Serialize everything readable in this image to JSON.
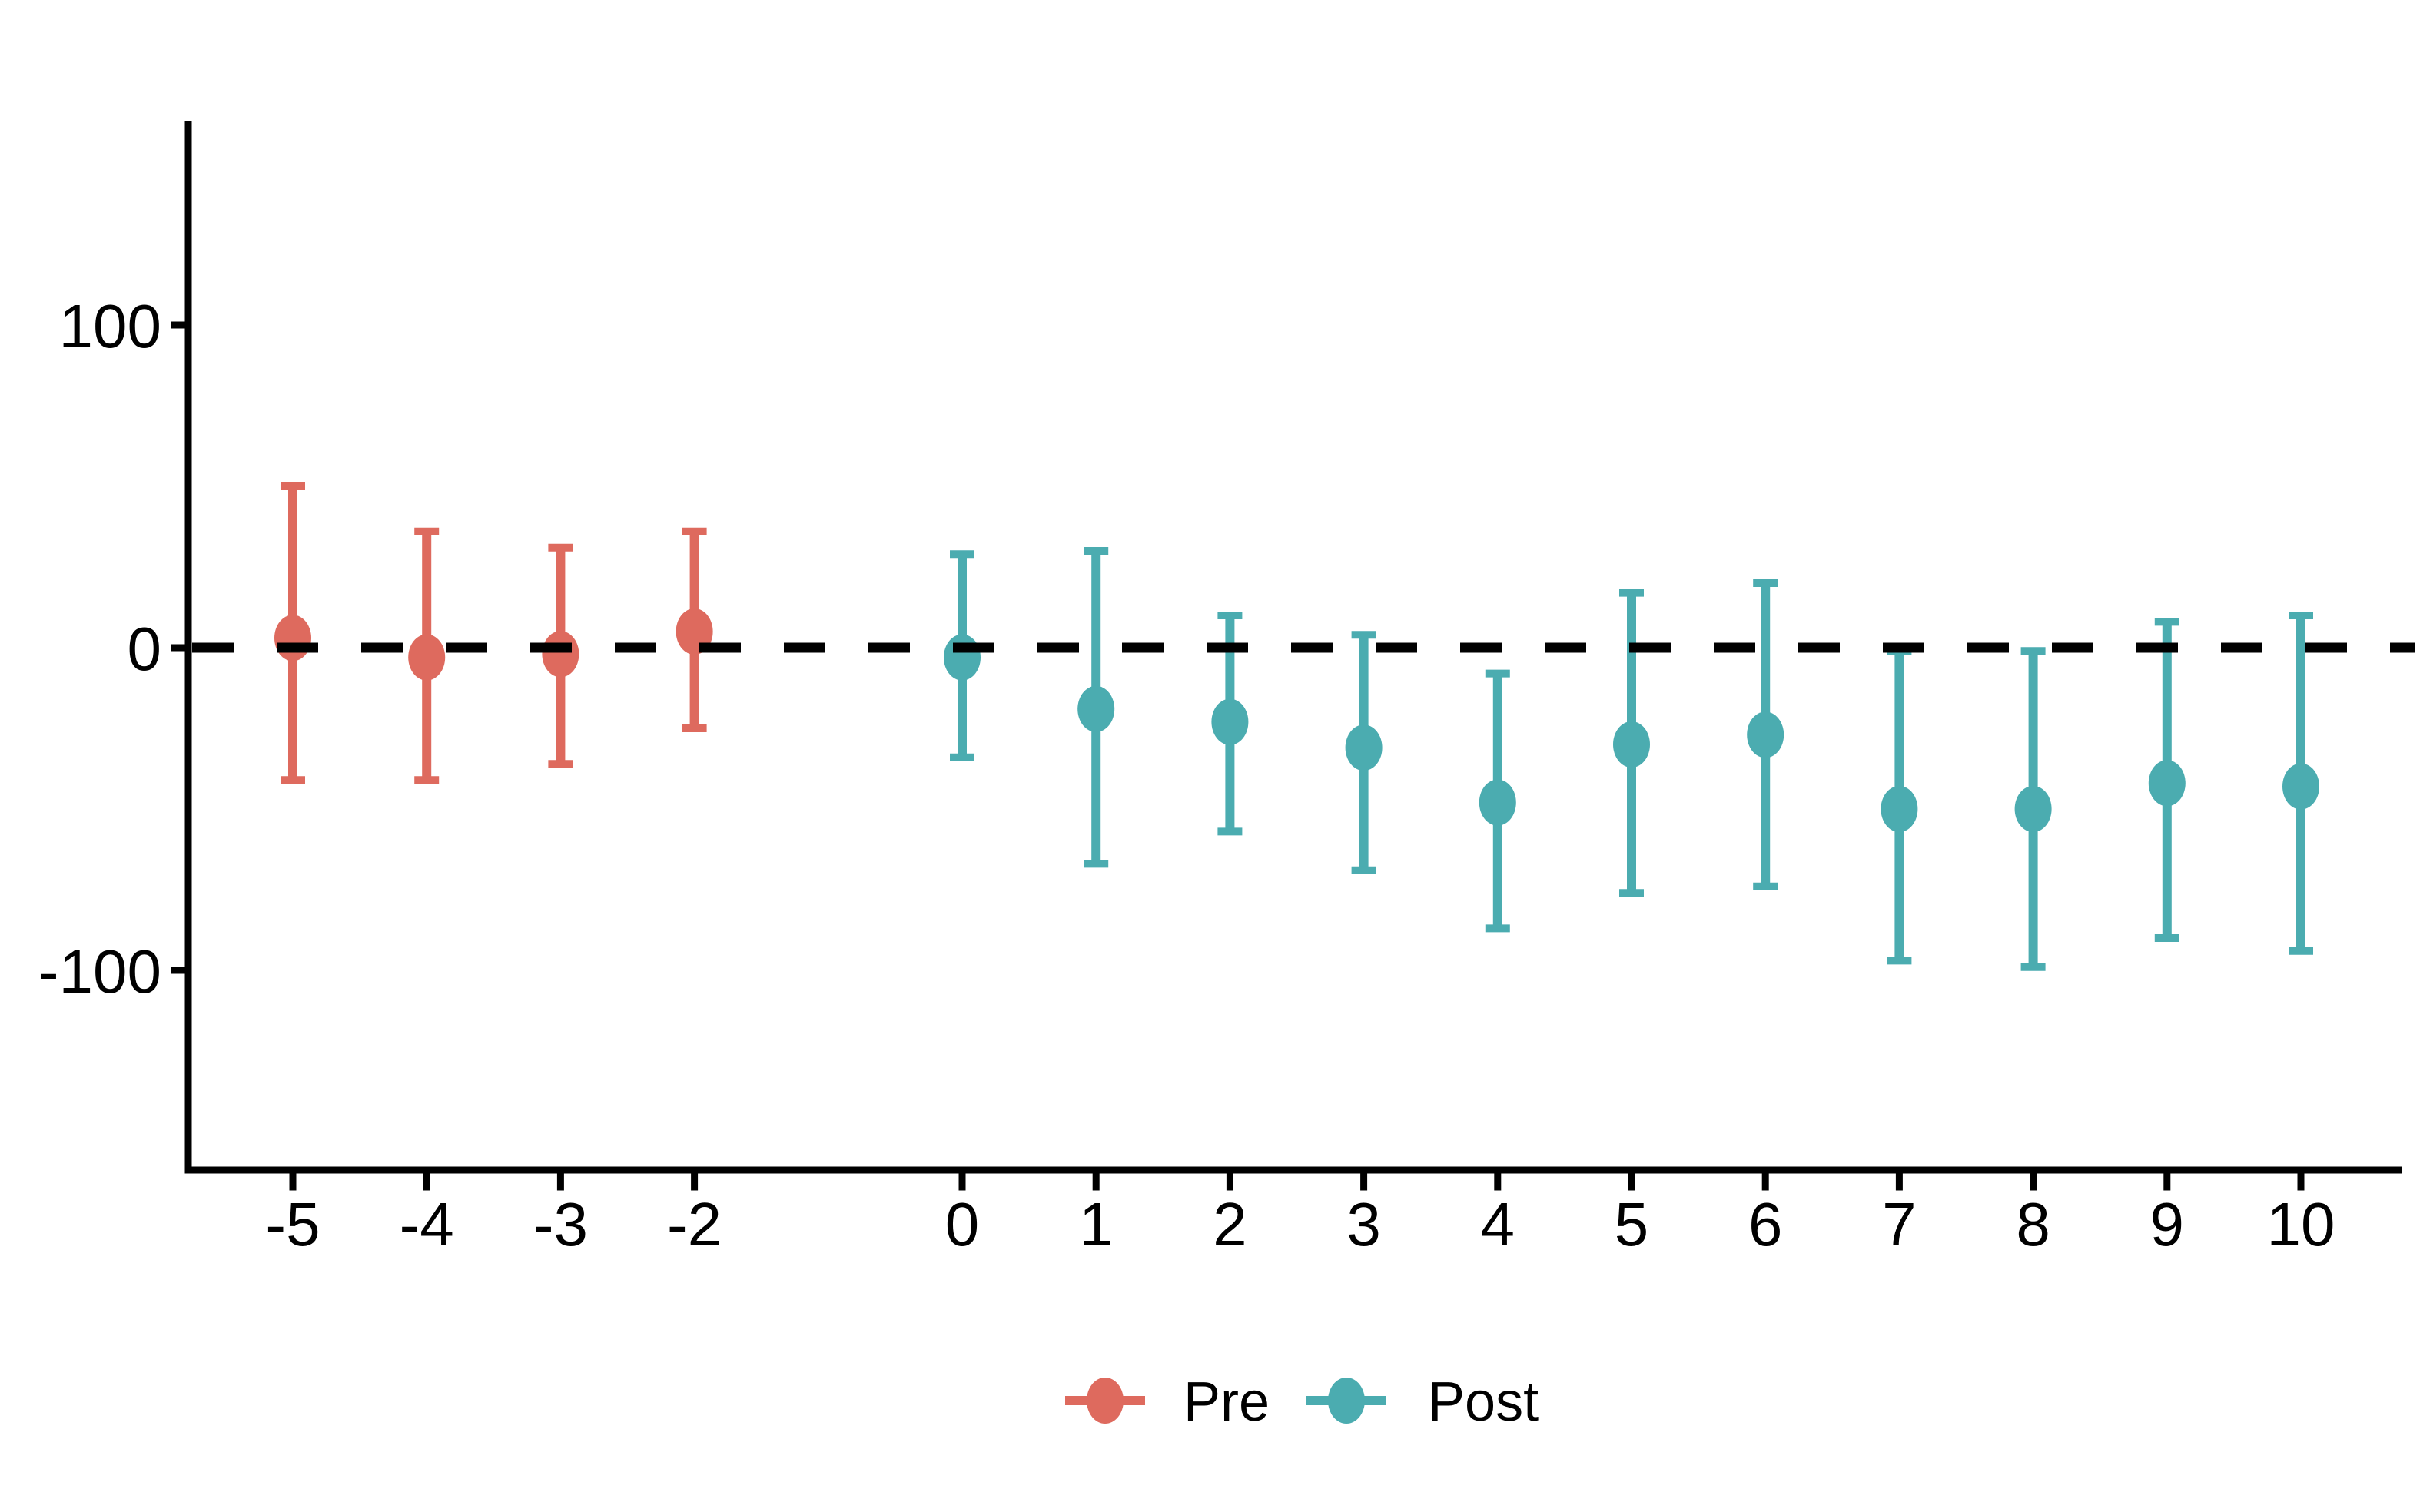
{
  "figure": {
    "background": "#FFFFFF",
    "title": ""
  },
  "colors": {
    "pre": "#DE6A5E",
    "post": "#4BACB0",
    "axis": "#000000",
    "zero_line": "#000000",
    "background": "#FFFFFF"
  },
  "chart_data": {
    "type": "scatter",
    "subtype": "errorbar-pointrange-event-study",
    "title": "",
    "xlabel": "",
    "ylabel": "",
    "grid": false,
    "legend_position": "bottom-center",
    "xlim": [
      -5.8,
      10.8
    ],
    "ylim": [
      -163,
      163
    ],
    "zero_reference_line": {
      "y": 0,
      "style": "dashed",
      "color": "#000000"
    },
    "x_ticks": [
      {
        "value": -5,
        "label": "-5"
      },
      {
        "value": -4,
        "label": "-4"
      },
      {
        "value": -3,
        "label": "-3"
      },
      {
        "value": -2,
        "label": "-2"
      },
      {
        "value": 0,
        "label": "0"
      },
      {
        "value": 1,
        "label": "1"
      },
      {
        "value": 2,
        "label": "2"
      },
      {
        "value": 3,
        "label": "3"
      },
      {
        "value": 4,
        "label": "4"
      },
      {
        "value": 5,
        "label": "5"
      },
      {
        "value": 6,
        "label": "6"
      },
      {
        "value": 7,
        "label": "7"
      },
      {
        "value": 8,
        "label": "8"
      },
      {
        "value": 9,
        "label": "9"
      },
      {
        "value": 10,
        "label": "10"
      }
    ],
    "y_ticks": [
      {
        "value": 100,
        "label": "100"
      },
      {
        "value": 0,
        "label": "0"
      },
      {
        "value": -100,
        "label": "-100"
      }
    ],
    "series": [
      {
        "name": "Pre",
        "color": "#DE6A5E",
        "points": [
          {
            "x": -5,
            "y": 3,
            "lo": -41,
            "hi": 50
          },
          {
            "x": -4,
            "y": -3,
            "lo": -41,
            "hi": 36
          },
          {
            "x": -3,
            "y": -2,
            "lo": -36,
            "hi": 31
          },
          {
            "x": -2,
            "y": 5,
            "lo": -25,
            "hi": 36
          }
        ]
      },
      {
        "name": "Post",
        "color": "#4BACB0",
        "points": [
          {
            "x": 0,
            "y": -3,
            "lo": -34,
            "hi": 29
          },
          {
            "x": 1,
            "y": -19,
            "lo": -67,
            "hi": 30
          },
          {
            "x": 2,
            "y": -23,
            "lo": -57,
            "hi": 10
          },
          {
            "x": 3,
            "y": -31,
            "lo": -69,
            "hi": 4
          },
          {
            "x": 4,
            "y": -48,
            "lo": -87,
            "hi": -8
          },
          {
            "x": 5,
            "y": -30,
            "lo": -76,
            "hi": 17
          },
          {
            "x": 6,
            "y": -27,
            "lo": -74,
            "hi": 20
          },
          {
            "x": 7,
            "y": -50,
            "lo": -97,
            "hi": -1
          },
          {
            "x": 8,
            "y": -50,
            "lo": -99,
            "hi": -1
          },
          {
            "x": 9,
            "y": -42,
            "lo": -90,
            "hi": 8
          },
          {
            "x": 10,
            "y": -43,
            "lo": -94,
            "hi": 10
          }
        ]
      }
    ],
    "legend": [
      {
        "label": "Pre",
        "color": "#DE6A5E"
      },
      {
        "label": "Post",
        "color": "#4BACB0"
      }
    ]
  }
}
